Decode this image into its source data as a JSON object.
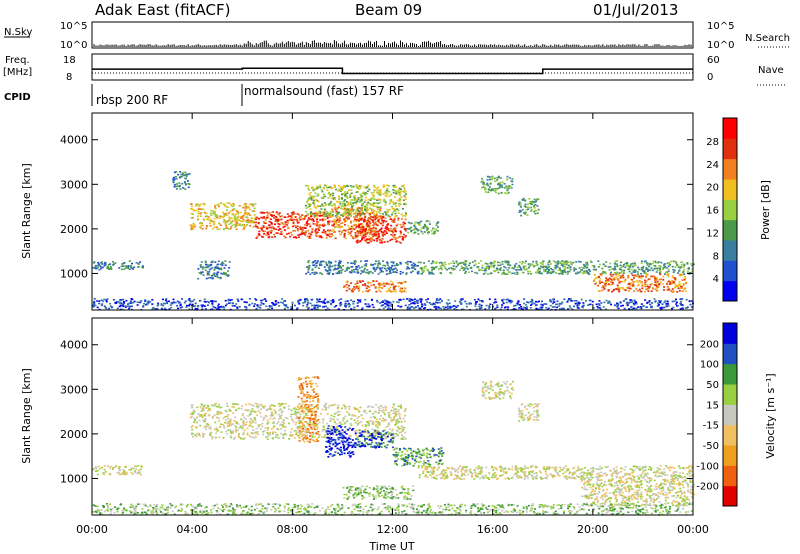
{
  "header": {
    "radar": "Adak East (fitACF)",
    "beam": "Beam 09",
    "date": "01/Jul/2013"
  },
  "summary_panel": {
    "nsky_label": "N.Sky",
    "nsky_ticks": [
      "10^5",
      "10^0"
    ],
    "nsearch_label": "N.Search",
    "nsearch_ticks": [
      "10^5",
      "10^0"
    ],
    "freq_label_1": "Freq.",
    "freq_label_2": "[MHz]",
    "freq_ticks": [
      "18",
      "8"
    ],
    "nave_label": "Nave",
    "nave_ticks": [
      "60",
      "0"
    ],
    "cpid_label": "CPID",
    "cpid_segments": [
      {
        "label": "rbsp 200 RF",
        "start_hour": 0
      },
      {
        "label": "normalsound (fast) 157 RF",
        "start_hour": 6
      }
    ],
    "freq_steps": [
      {
        "start_hour": 0,
        "end_hour": 6,
        "mhz": 12.2
      },
      {
        "start_hour": 6,
        "end_hour": 10,
        "mhz": 12.5
      },
      {
        "start_hour": 10,
        "end_hour": 18,
        "mhz": 10.5
      },
      {
        "start_hour": 18,
        "end_hour": 24,
        "mhz": 12.2
      }
    ]
  },
  "chart_data": [
    {
      "type": "heatmap",
      "panel": "power",
      "ylabel": "Slant Range [km]",
      "ylim": [
        180,
        4600
      ],
      "yticks": [
        "1000",
        "2000",
        "3000",
        "4000"
      ],
      "xlim_hours": [
        0,
        24
      ],
      "colorbar_label": "Power [dB]",
      "colorbar_ticks": [
        "4",
        "8",
        "12",
        "16",
        "20",
        "24",
        "28"
      ],
      "colors": [
        "#0000ee",
        "#2050d0",
        "#3a7fa0",
        "#4a9a4a",
        "#9ad040",
        "#f0c020",
        "#f08020",
        "#e03010",
        "#ff0000"
      ],
      "regions": [
        {
          "t0": 3.9,
          "t1": 6.5,
          "r0": 2000,
          "r1": 2600,
          "level": 5
        },
        {
          "t0": 6.5,
          "t1": 9.5,
          "r0": 1800,
          "r1": 2400,
          "level": 7
        },
        {
          "t0": 9.5,
          "t1": 11.5,
          "r0": 1800,
          "r1": 2500,
          "level": 6
        },
        {
          "t0": 8.5,
          "t1": 12.5,
          "r0": 2300,
          "r1": 3000,
          "level": 4
        },
        {
          "t0": 10.5,
          "t1": 12.5,
          "r0": 1700,
          "r1": 2300,
          "level": 7
        },
        {
          "t0": 12.5,
          "t1": 13.8,
          "r0": 1900,
          "r1": 2200,
          "level": 3
        },
        {
          "t0": 3.2,
          "t1": 3.9,
          "r0": 2900,
          "r1": 3300,
          "level": 2
        },
        {
          "t0": 0.0,
          "t1": 2.0,
          "r0": 1100,
          "r1": 1300,
          "level": 2
        },
        {
          "t0": 4.2,
          "t1": 5.5,
          "r0": 900,
          "r1": 1300,
          "level": 2
        },
        {
          "t0": 8.5,
          "t1": 13.0,
          "r0": 1000,
          "r1": 1300,
          "level": 2
        },
        {
          "t0": 13.0,
          "t1": 19.0,
          "r0": 1000,
          "r1": 1300,
          "level": 3
        },
        {
          "t0": 18.5,
          "t1": 24.0,
          "r0": 1000,
          "r1": 1300,
          "level": 3
        },
        {
          "t0": 20.0,
          "t1": 23.7,
          "r0": 600,
          "r1": 1000,
          "level": 6
        },
        {
          "t0": 10.0,
          "t1": 12.5,
          "r0": 600,
          "r1": 850,
          "level": 6
        },
        {
          "t0": 15.5,
          "t1": 16.8,
          "r0": 2800,
          "r1": 3200,
          "level": 3
        },
        {
          "t0": 17.0,
          "t1": 17.8,
          "r0": 2300,
          "r1": 2700,
          "level": 3
        },
        {
          "t0": 0.0,
          "t1": 24.0,
          "r0": 200,
          "r1": 450,
          "level": 1
        }
      ]
    },
    {
      "type": "heatmap",
      "panel": "velocity",
      "ylabel": "Slant Range [km]",
      "ylim": [
        180,
        4600
      ],
      "yticks": [
        "1000",
        "2000",
        "3000",
        "4000"
      ],
      "xlim_hours": [
        0,
        24
      ],
      "xticks": [
        "00:00",
        "04:00",
        "08:00",
        "12:00",
        "16:00",
        "20:00",
        "00:00"
      ],
      "xlabel": "Time UT",
      "colorbar_label": "Velocity [m s⁻¹]",
      "colorbar_ticks": [
        "-200",
        "-100",
        "-50",
        "-15",
        "15",
        "50",
        "100",
        "200"
      ],
      "colors": [
        "#e00000",
        "#f06010",
        "#f0a020",
        "#f0c060",
        "#c8c8c0",
        "#9ad040",
        "#3a9a3a",
        "#2050c0",
        "#0000dd"
      ],
      "regions": [
        {
          "t0": 3.9,
          "t1": 12.5,
          "r0": 1900,
          "r1": 2700,
          "level": 4
        },
        {
          "t0": 8.2,
          "t1": 9.0,
          "r0": 1800,
          "r1": 3300,
          "level": 2
        },
        {
          "t0": 9.3,
          "t1": 10.4,
          "r0": 1500,
          "r1": 2200,
          "level": 8
        },
        {
          "t0": 10.4,
          "t1": 12.0,
          "r0": 1700,
          "r1": 2100,
          "level": 7
        },
        {
          "t0": 12.0,
          "t1": 14.0,
          "r0": 1300,
          "r1": 1700,
          "level": 6
        },
        {
          "t0": 0.0,
          "t1": 2.0,
          "r0": 1100,
          "r1": 1300,
          "level": 4
        },
        {
          "t0": 13.0,
          "t1": 24.0,
          "r0": 1000,
          "r1": 1300,
          "level": 4
        },
        {
          "t0": 19.5,
          "t1": 24.0,
          "r0": 400,
          "r1": 1000,
          "level": 4
        },
        {
          "t0": 10.0,
          "t1": 12.8,
          "r0": 550,
          "r1": 850,
          "level": 5
        },
        {
          "t0": 15.5,
          "t1": 16.8,
          "r0": 2800,
          "r1": 3200,
          "level": 4
        },
        {
          "t0": 17.0,
          "t1": 17.8,
          "r0": 2300,
          "r1": 2700,
          "level": 4
        },
        {
          "t0": 0.0,
          "t1": 24.0,
          "r0": 200,
          "r1": 450,
          "level": 5
        }
      ]
    }
  ]
}
